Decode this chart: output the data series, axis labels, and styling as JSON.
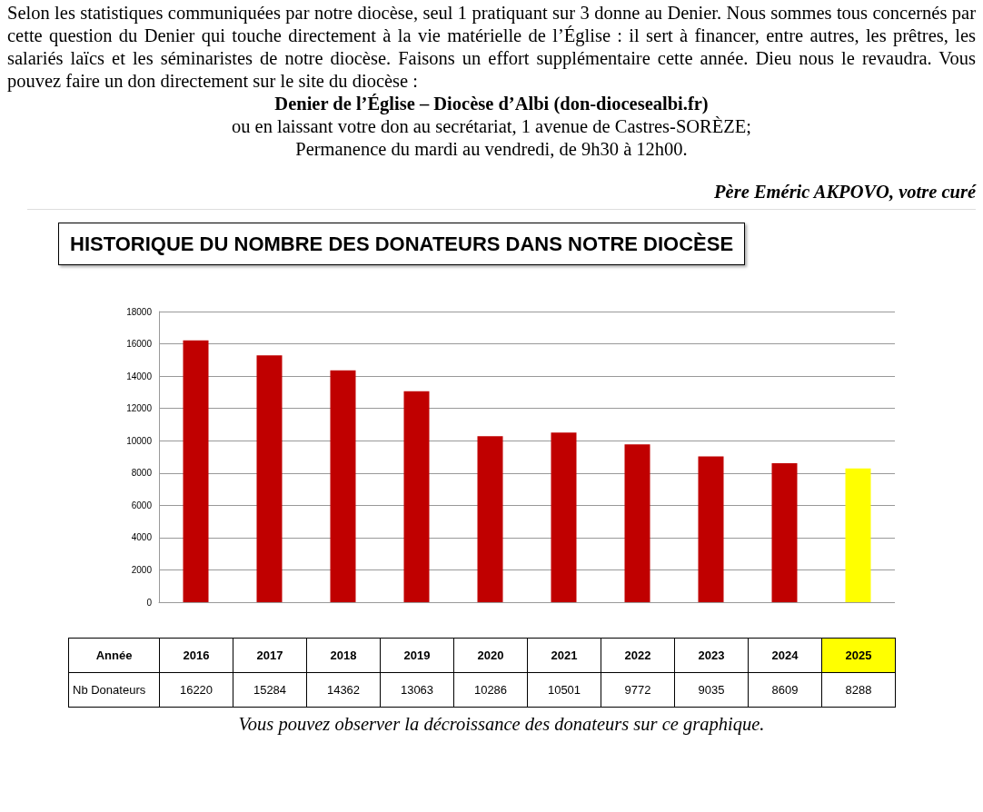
{
  "chart_data": {
    "type": "bar",
    "title": "HISTORIQUE DU NOMBRE DES DONATEURS DANS NOTRE DIOCÈSE",
    "xlabel": "Année",
    "ylabel": "Nb Donateurs",
    "categories": [
      "2016",
      "2017",
      "2018",
      "2019",
      "2020",
      "2021",
      "2022",
      "2023",
      "2024",
      "2025"
    ],
    "values": [
      16220,
      15284,
      14362,
      13063,
      10286,
      10501,
      9772,
      9035,
      8609,
      8288
    ],
    "colors": [
      "#c00000",
      "#c00000",
      "#c00000",
      "#c00000",
      "#c00000",
      "#c00000",
      "#c00000",
      "#c00000",
      "#c00000",
      "#ffff00"
    ],
    "ylim": [
      0,
      18000
    ],
    "yticks": [
      0,
      2000,
      4000,
      6000,
      8000,
      10000,
      12000,
      14000,
      16000,
      18000
    ],
    "grid": "y",
    "tick_labels": "y",
    "data_labels": true,
    "annotations": [
      "Selon les statistiques communiquées par notre diocèse, seul 1 pratiquant sur 3 donne au Denier. Nous sommes tous concernés par cette question du Denier qui touche directement à la vie matérielle de l’Église : il sert à financer, entre autres,  les prêtres, les salariés laïcs et les séminaristes de notre diocèse. Faisons un effort supplémentaire cette année. Dieu nous le revaudra. Vous pouvez faire un don directement sur le site du diocèse :",
      "Denier de l’Église – Diocèse d’Albi (don-diocesealbi.fr)",
      "ou en laissant votre don au secrétariat, 1 avenue de Castres-SORÈZE;",
      "Permanence du mardi au vendredi, de 9h30 à 12h00.",
      "Père Eméric AKPOVO, votre curé",
      "Vous pouvez observer la décroissance des donateurs sur ce graphique."
    ]
  }
}
